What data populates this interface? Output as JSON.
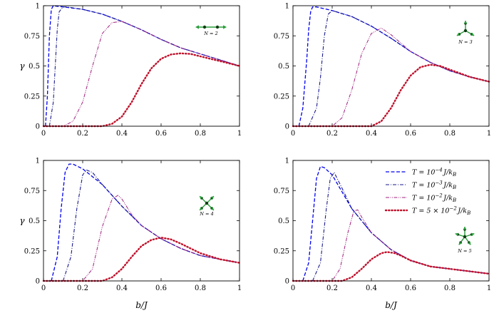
{
  "chart_data": [
    {
      "type": "line",
      "inset_label": "N = 2",
      "ylabel": "γ",
      "xlabel": "",
      "xlim": [
        0,
        1
      ],
      "ylim": [
        0,
        1
      ],
      "x_ticks": [
        "0",
        "0.2",
        "0.4",
        "0.6",
        "0.8",
        "1"
      ],
      "y_ticks": [
        "0",
        "0.25",
        "0.5",
        "0.75",
        "1"
      ],
      "series": [
        {
          "x": [
            0.01,
            0.02,
            0.03,
            0.04,
            0.05,
            0.07,
            0.1,
            0.2,
            0.3,
            0.4,
            0.5,
            0.6,
            0.7,
            0.8,
            0.9,
            1.0
          ],
          "y": [
            0.0,
            0.25,
            0.75,
            0.97,
            1.0,
            0.995,
            0.99,
            0.97,
            0.93,
            0.87,
            0.8,
            0.72,
            0.65,
            0.6,
            0.55,
            0.5
          ]
        },
        {
          "x": [
            0.03,
            0.05,
            0.06,
            0.07,
            0.08,
            0.1,
            0.12,
            0.2,
            0.3,
            0.4,
            0.5,
            0.6,
            0.7,
            0.8,
            0.9,
            1.0
          ],
          "y": [
            0.0,
            0.2,
            0.5,
            0.8,
            0.95,
            0.99,
            0.99,
            0.97,
            0.93,
            0.87,
            0.8,
            0.72,
            0.65,
            0.6,
            0.55,
            0.5
          ]
        },
        {
          "x": [
            0.0,
            0.1,
            0.15,
            0.2,
            0.25,
            0.3,
            0.35,
            0.4,
            0.5,
            0.6,
            0.7,
            0.8,
            0.9,
            1.0
          ],
          "y": [
            0.0,
            0.0,
            0.04,
            0.2,
            0.5,
            0.77,
            0.86,
            0.87,
            0.8,
            0.72,
            0.65,
            0.6,
            0.55,
            0.5
          ]
        },
        {
          "x": [
            0.0,
            0.3,
            0.35,
            0.4,
            0.45,
            0.5,
            0.55,
            0.6,
            0.65,
            0.7,
            0.75,
            0.8,
            0.85,
            0.9,
            1.0
          ],
          "y": [
            0.0,
            0.0,
            0.02,
            0.08,
            0.2,
            0.35,
            0.48,
            0.56,
            0.595,
            0.605,
            0.6,
            0.58,
            0.56,
            0.54,
            0.5
          ]
        }
      ]
    },
    {
      "type": "line",
      "inset_label": "N = 3",
      "ylabel": "",
      "xlabel": "",
      "xlim": [
        0,
        1
      ],
      "ylim": [
        0,
        1
      ],
      "x_ticks": [
        "0",
        "0.2",
        "0.4",
        "0.6",
        "0.8",
        "1"
      ],
      "y_ticks": [
        "0",
        "0.25",
        "0.5",
        "0.75",
        "1"
      ],
      "series": [
        {
          "x": [
            0.03,
            0.05,
            0.07,
            0.08,
            0.09,
            0.1,
            0.12,
            0.2,
            0.3,
            0.4,
            0.5,
            0.6,
            0.7,
            0.8,
            0.9,
            1.0
          ],
          "y": [
            0.0,
            0.15,
            0.55,
            0.8,
            0.95,
            0.99,
            0.99,
            0.96,
            0.91,
            0.83,
            0.73,
            0.62,
            0.53,
            0.46,
            0.41,
            0.37
          ]
        },
        {
          "x": [
            0.08,
            0.12,
            0.14,
            0.16,
            0.18,
            0.2,
            0.3,
            0.4,
            0.5,
            0.6,
            0.7,
            0.8,
            0.9,
            1.0
          ],
          "y": [
            0.0,
            0.15,
            0.4,
            0.75,
            0.93,
            0.96,
            0.91,
            0.83,
            0.73,
            0.62,
            0.53,
            0.46,
            0.41,
            0.37
          ]
        },
        {
          "x": [
            0.0,
            0.2,
            0.25,
            0.3,
            0.35,
            0.4,
            0.45,
            0.5,
            0.6,
            0.7,
            0.8,
            0.9,
            1.0
          ],
          "y": [
            0.0,
            0.0,
            0.07,
            0.3,
            0.6,
            0.77,
            0.815,
            0.76,
            0.62,
            0.53,
            0.46,
            0.41,
            0.37
          ]
        },
        {
          "x": [
            0.0,
            0.4,
            0.45,
            0.5,
            0.55,
            0.6,
            0.65,
            0.7,
            0.75,
            0.8,
            0.85,
            0.9,
            1.0
          ],
          "y": [
            0.0,
            0.0,
            0.04,
            0.15,
            0.3,
            0.42,
            0.49,
            0.51,
            0.5,
            0.47,
            0.44,
            0.41,
            0.37
          ]
        }
      ]
    },
    {
      "type": "line",
      "inset_label": "N = 4",
      "ylabel": "γ",
      "xlabel": "b/J",
      "xlim": [
        0,
        1
      ],
      "ylim": [
        0,
        1
      ],
      "x_ticks": [
        "0",
        "0.2",
        "0.4",
        "0.6",
        "0.8",
        "1"
      ],
      "y_ticks": [
        "0",
        "0.25",
        "0.5",
        "0.75",
        "1"
      ],
      "series": [
        {
          "x": [
            0.04,
            0.07,
            0.09,
            0.11,
            0.13,
            0.15,
            0.2,
            0.3,
            0.4,
            0.5,
            0.6,
            0.7,
            0.8,
            0.9,
            1.0
          ],
          "y": [
            0.0,
            0.2,
            0.6,
            0.9,
            0.97,
            0.97,
            0.93,
            0.8,
            0.62,
            0.46,
            0.35,
            0.27,
            0.21,
            0.18,
            0.15
          ]
        },
        {
          "x": [
            0.1,
            0.14,
            0.17,
            0.2,
            0.22,
            0.25,
            0.3,
            0.4,
            0.5,
            0.6,
            0.7,
            0.8,
            0.9,
            1.0
          ],
          "y": [
            0.0,
            0.2,
            0.6,
            0.88,
            0.92,
            0.9,
            0.8,
            0.62,
            0.46,
            0.35,
            0.27,
            0.21,
            0.18,
            0.15
          ]
        },
        {
          "x": [
            0.0,
            0.2,
            0.25,
            0.3,
            0.35,
            0.38,
            0.4,
            0.45,
            0.5,
            0.6,
            0.7,
            0.8,
            0.9,
            1.0
          ],
          "y": [
            0.0,
            0.0,
            0.1,
            0.45,
            0.68,
            0.71,
            0.68,
            0.55,
            0.46,
            0.35,
            0.27,
            0.21,
            0.18,
            0.15
          ]
        },
        {
          "x": [
            0.0,
            0.3,
            0.35,
            0.4,
            0.45,
            0.5,
            0.55,
            0.6,
            0.65,
            0.7,
            0.75,
            0.8,
            0.9,
            1.0
          ],
          "y": [
            0.0,
            0.0,
            0.03,
            0.1,
            0.2,
            0.29,
            0.34,
            0.36,
            0.345,
            0.31,
            0.27,
            0.23,
            0.18,
            0.15
          ]
        }
      ]
    },
    {
      "type": "line",
      "inset_label": "N = 5",
      "ylabel": "",
      "xlabel": "b/J",
      "xlim": [
        0,
        1
      ],
      "ylim": [
        0,
        1
      ],
      "x_ticks": [
        "0",
        "0.2",
        "0.4",
        "0.6",
        "0.8",
        "1"
      ],
      "y_ticks": [
        "0",
        "0.25",
        "0.5",
        "0.75",
        "1"
      ],
      "legend_position": "top-right",
      "series": [
        {
          "name": "T = 10^-4 J/k_B",
          "x": [
            0.05,
            0.08,
            0.1,
            0.12,
            0.14,
            0.16,
            0.2,
            0.3,
            0.4,
            0.5,
            0.6,
            0.7,
            0.8,
            0.9,
            1.0
          ],
          "y": [
            0.0,
            0.15,
            0.5,
            0.85,
            0.95,
            0.94,
            0.88,
            0.6,
            0.4,
            0.26,
            0.17,
            0.12,
            0.1,
            0.08,
            0.06
          ]
        },
        {
          "name": "T = 10^-3 J/k_B",
          "x": [
            0.1,
            0.14,
            0.17,
            0.19,
            0.21,
            0.25,
            0.3,
            0.4,
            0.5,
            0.6,
            0.7,
            0.8,
            0.9,
            1.0
          ],
          "y": [
            0.0,
            0.15,
            0.6,
            0.85,
            0.9,
            0.77,
            0.6,
            0.4,
            0.26,
            0.17,
            0.12,
            0.1,
            0.08,
            0.06
          ]
        },
        {
          "name": "T = 10^-2 J/k_B",
          "x": [
            0.0,
            0.2,
            0.24,
            0.28,
            0.31,
            0.33,
            0.35,
            0.4,
            0.5,
            0.6,
            0.7,
            0.8,
            0.9,
            1.0
          ],
          "y": [
            0.0,
            0.0,
            0.1,
            0.4,
            0.58,
            0.59,
            0.53,
            0.4,
            0.26,
            0.17,
            0.12,
            0.1,
            0.08,
            0.06
          ]
        },
        {
          "name": "T = 5 × 10^-2 J/k_B",
          "x": [
            0.0,
            0.25,
            0.3,
            0.35,
            0.4,
            0.45,
            0.48,
            0.52,
            0.55,
            0.6,
            0.7,
            0.8,
            0.9,
            1.0
          ],
          "y": [
            0.0,
            0.0,
            0.03,
            0.1,
            0.18,
            0.23,
            0.24,
            0.23,
            0.21,
            0.17,
            0.12,
            0.1,
            0.08,
            0.06
          ]
        }
      ]
    }
  ],
  "legend": [
    {
      "prefix": "T = 10",
      "sup": "−4",
      "suffix": "J/k",
      "sub": "B"
    },
    {
      "prefix": "T = 10",
      "sup": "−3",
      "suffix": "J/k",
      "sub": "B"
    },
    {
      "prefix": "T = 10",
      "sup": "−2",
      "suffix": "J/k",
      "sub": "B"
    },
    {
      "prefix": "T = 5 × 10",
      "sup": "−2",
      "suffix": "J/k",
      "sub": "B"
    }
  ],
  "styles": [
    {
      "color": "#0000ee",
      "dash": "5,2.5",
      "width": 1.3
    },
    {
      "color": "#1a1a8c",
      "dash": "5,2,1,2",
      "width": 1.1
    },
    {
      "color": "#a0207e",
      "dash": "5,1.5,1,1.5,1,1.5",
      "width": 1.0
    },
    {
      "color": "#c0102a",
      "dash": "1.2,3",
      "width": 2.4
    }
  ],
  "inset_colors": {
    "arrow": "#2a9d3a",
    "node": "#0d3d12"
  }
}
